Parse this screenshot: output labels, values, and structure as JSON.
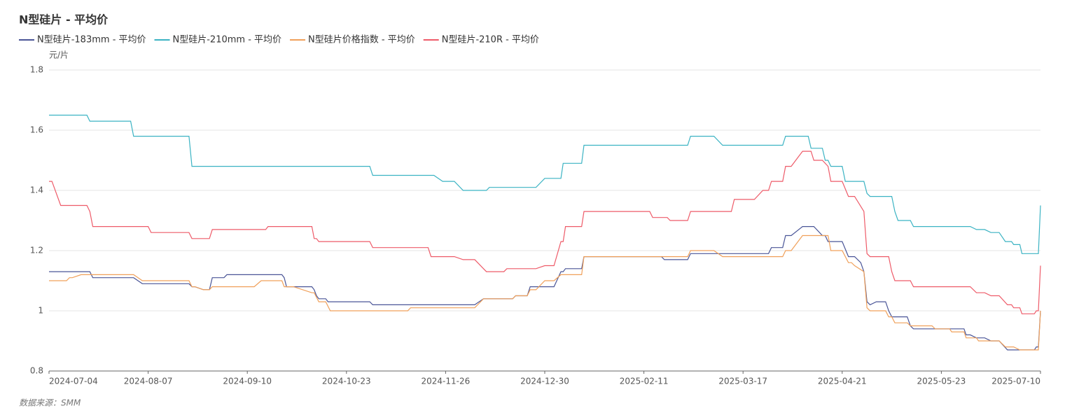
{
  "chart_data": {
    "type": "line",
    "title": "N型硅片 - 平均价",
    "y_label": "元/片",
    "source": "数据来源：SMM",
    "xlim": [
      "2024-07-04",
      "2025-07-10"
    ],
    "xticks": [
      "2024-07-04",
      "2024-08-07",
      "2024-09-10",
      "2024-10-23",
      "2024-11-26",
      "2024-12-30",
      "2025-02-11",
      "2025-03-17",
      "2025-04-21",
      "2025-05-23",
      "2025-07-10"
    ],
    "ylim": [
      0.8,
      1.8
    ],
    "yticks": [
      0.8,
      1,
      1.2,
      1.4,
      1.6,
      1.8
    ],
    "grid": true,
    "series": [
      {
        "name": "N型硅片-183mm - 平均价",
        "color": "#4a5597",
        "x": [
          "2024-07-04",
          "2024-07-18",
          "2024-07-19",
          "2024-08-02",
          "2024-08-05",
          "2024-08-21",
          "2024-08-22",
          "2024-08-23",
          "2024-08-26",
          "2024-08-28",
          "2024-08-29",
          "2024-09-02",
          "2024-09-03",
          "2024-09-25",
          "2024-09-26",
          "2024-09-27",
          "2024-10-08",
          "2024-10-09",
          "2024-10-10",
          "2024-10-11",
          "2024-10-14",
          "2024-10-15",
          "2024-10-31",
          "2024-11-01",
          "2024-12-06",
          "2024-12-09",
          "2024-12-19",
          "2024-12-20",
          "2024-12-24",
          "2024-12-25",
          "2025-01-03",
          "2025-01-06",
          "2025-01-07",
          "2025-01-08",
          "2025-01-15",
          "2025-01-16",
          "2025-02-17",
          "2025-02-18",
          "2025-02-26",
          "2025-02-27",
          "2025-03-26",
          "2025-03-27",
          "2025-03-31",
          "2025-04-01",
          "2025-04-03",
          "2025-04-07",
          "2025-04-11",
          "2025-04-14",
          "2025-04-15",
          "2025-04-16",
          "2025-04-21",
          "2025-04-23",
          "2025-04-25",
          "2025-04-27",
          "2025-04-28",
          "2025-04-29",
          "2025-04-30",
          "2025-05-02",
          "2025-05-05",
          "2025-05-06",
          "2025-05-07",
          "2025-05-12",
          "2025-05-13",
          "2025-05-14",
          "2025-06-03",
          "2025-06-04",
          "2025-06-06",
          "2025-06-09",
          "2025-06-13",
          "2025-06-16",
          "2025-06-20",
          "2025-06-24",
          "2025-07-07",
          "2025-07-08",
          "2025-07-09",
          "2025-07-10"
        ],
        "values": [
          1.13,
          1.13,
          1.11,
          1.11,
          1.09,
          1.09,
          1.08,
          1.08,
          1.07,
          1.07,
          1.11,
          1.11,
          1.12,
          1.12,
          1.11,
          1.08,
          1.08,
          1.07,
          1.05,
          1.04,
          1.04,
          1.03,
          1.03,
          1.02,
          1.02,
          1.04,
          1.04,
          1.05,
          1.05,
          1.08,
          1.08,
          1.13,
          1.13,
          1.14,
          1.14,
          1.18,
          1.18,
          1.17,
          1.17,
          1.19,
          1.19,
          1.21,
          1.21,
          1.25,
          1.25,
          1.28,
          1.28,
          1.25,
          1.25,
          1.23,
          1.23,
          1.18,
          1.18,
          1.16,
          1.13,
          1.03,
          1.02,
          1.03,
          1.03,
          1.0,
          0.98,
          0.98,
          0.95,
          0.94,
          0.94,
          0.92,
          0.92,
          0.91,
          0.91,
          0.9,
          0.9,
          0.87,
          0.87,
          0.88,
          0.88,
          1.0
        ]
      },
      {
        "name": "N型硅片-210mm - 平均价",
        "color": "#3bb3c3",
        "x": [
          "2024-07-04",
          "2024-07-17",
          "2024-07-18",
          "2024-08-01",
          "2024-08-02",
          "2024-08-21",
          "2024-08-22",
          "2024-10-31",
          "2024-11-01",
          "2024-11-22",
          "2024-11-25",
          "2024-11-29",
          "2024-12-02",
          "2024-12-10",
          "2024-12-11",
          "2024-12-27",
          "2024-12-30",
          "2025-01-06",
          "2025-01-07",
          "2025-01-15",
          "2025-01-16",
          "2025-02-26",
          "2025-02-27",
          "2025-03-07",
          "2025-03-10",
          "2025-03-31",
          "2025-04-01",
          "2025-04-09",
          "2025-04-10",
          "2025-04-14",
          "2025-04-15",
          "2025-04-16",
          "2025-04-17",
          "2025-04-21",
          "2025-04-22",
          "2025-04-28",
          "2025-04-29",
          "2025-04-30",
          "2025-05-07",
          "2025-05-08",
          "2025-05-09",
          "2025-05-13",
          "2025-05-14",
          "2025-06-06",
          "2025-06-09",
          "2025-06-13",
          "2025-06-16",
          "2025-06-20",
          "2025-06-23",
          "2025-06-26",
          "2025-06-27",
          "2025-06-30",
          "2025-07-01",
          "2025-07-09",
          "2025-07-10"
        ],
        "values": [
          1.65,
          1.65,
          1.63,
          1.63,
          1.58,
          1.58,
          1.48,
          1.48,
          1.45,
          1.45,
          1.43,
          1.43,
          1.4,
          1.4,
          1.41,
          1.41,
          1.44,
          1.44,
          1.49,
          1.49,
          1.55,
          1.55,
          1.58,
          1.58,
          1.55,
          1.55,
          1.58,
          1.58,
          1.54,
          1.54,
          1.5,
          1.5,
          1.48,
          1.48,
          1.43,
          1.43,
          1.39,
          1.38,
          1.38,
          1.33,
          1.3,
          1.3,
          1.28,
          1.28,
          1.27,
          1.27,
          1.26,
          1.26,
          1.23,
          1.23,
          1.22,
          1.22,
          1.19,
          1.19,
          1.35
        ]
      },
      {
        "name": "N型硅片价格指数 - 平均价",
        "color": "#f0a05a",
        "x": [
          "2024-07-04",
          "2024-07-10",
          "2024-07-11",
          "2024-07-12",
          "2024-07-15",
          "2024-08-02",
          "2024-08-05",
          "2024-08-21",
          "2024-08-22",
          "2024-08-23",
          "2024-08-26",
          "2024-08-28",
          "2024-08-29",
          "2024-09-13",
          "2024-09-16",
          "2024-09-25",
          "2024-09-26",
          "2024-09-30",
          "2024-10-08",
          "2024-10-09",
          "2024-10-11",
          "2024-10-14",
          "2024-10-16",
          "2024-11-13",
          "2024-11-14",
          "2024-12-06",
          "2024-12-09",
          "2024-12-19",
          "2024-12-20",
          "2024-12-24",
          "2024-12-25",
          "2024-12-27",
          "2024-12-30",
          "2025-01-03",
          "2025-01-06",
          "2025-01-15",
          "2025-01-16",
          "2025-02-26",
          "2025-02-27",
          "2025-03-07",
          "2025-03-10",
          "2025-03-31",
          "2025-04-01",
          "2025-04-03",
          "2025-04-07",
          "2025-04-16",
          "2025-04-17",
          "2025-04-21",
          "2025-04-23",
          "2025-04-24",
          "2025-04-25",
          "2025-04-28",
          "2025-04-29",
          "2025-04-30",
          "2025-05-05",
          "2025-05-06",
          "2025-05-07",
          "2025-05-08",
          "2025-05-12",
          "2025-05-13",
          "2025-05-20",
          "2025-05-21",
          "2025-05-27",
          "2025-05-28",
          "2025-06-03",
          "2025-06-04",
          "2025-06-09",
          "2025-06-10",
          "2025-06-20",
          "2025-06-23",
          "2025-06-27",
          "2025-06-30",
          "2025-07-09",
          "2025-07-10"
        ],
        "values": [
          1.1,
          1.1,
          1.11,
          1.11,
          1.12,
          1.12,
          1.1,
          1.1,
          1.08,
          1.08,
          1.07,
          1.07,
          1.08,
          1.08,
          1.1,
          1.1,
          1.08,
          1.08,
          1.06,
          1.06,
          1.03,
          1.03,
          1.0,
          1.0,
          1.01,
          1.01,
          1.04,
          1.04,
          1.05,
          1.05,
          1.07,
          1.07,
          1.1,
          1.1,
          1.12,
          1.12,
          1.18,
          1.18,
          1.2,
          1.2,
          1.18,
          1.18,
          1.2,
          1.2,
          1.25,
          1.25,
          1.2,
          1.2,
          1.16,
          1.16,
          1.15,
          1.13,
          1.01,
          1.0,
          1.0,
          0.98,
          0.98,
          0.96,
          0.96,
          0.95,
          0.95,
          0.94,
          0.94,
          0.93,
          0.93,
          0.91,
          0.91,
          0.9,
          0.9,
          0.88,
          0.88,
          0.87,
          0.87,
          1.0
        ]
      },
      {
        "name": "N型硅片-210R - 平均价",
        "color": "#ee5b69",
        "x": [
          "2024-07-04",
          "2024-07-05",
          "2024-07-08",
          "2024-07-17",
          "2024-07-18",
          "2024-07-19",
          "2024-08-07",
          "2024-08-08",
          "2024-08-21",
          "2024-08-22",
          "2024-08-28",
          "2024-08-29",
          "2024-09-18",
          "2024-09-19",
          "2024-10-08",
          "2024-10-09",
          "2024-10-10",
          "2024-10-11",
          "2024-10-31",
          "2024-11-01",
          "2024-11-20",
          "2024-11-21",
          "2024-11-29",
          "2024-12-02",
          "2024-12-06",
          "2024-12-09",
          "2024-12-10",
          "2024-12-16",
          "2024-12-17",
          "2024-12-27",
          "2024-12-30",
          "2025-01-03",
          "2025-01-06",
          "2025-01-07",
          "2025-01-08",
          "2025-01-15",
          "2025-01-16",
          "2025-02-13",
          "2025-02-14",
          "2025-02-19",
          "2025-02-20",
          "2025-02-26",
          "2025-02-27",
          "2025-03-13",
          "2025-03-14",
          "2025-03-21",
          "2025-03-24",
          "2025-03-26",
          "2025-03-27",
          "2025-03-31",
          "2025-04-01",
          "2025-04-03",
          "2025-04-07",
          "2025-04-10",
          "2025-04-11",
          "2025-04-14",
          "2025-04-16",
          "2025-04-17",
          "2025-04-21",
          "2025-04-23",
          "2025-04-25",
          "2025-04-28",
          "2025-04-29",
          "2025-04-30",
          "2025-05-06",
          "2025-05-07",
          "2025-05-08",
          "2025-05-13",
          "2025-05-14",
          "2025-06-06",
          "2025-06-09",
          "2025-06-13",
          "2025-06-16",
          "2025-06-20",
          "2025-06-24",
          "2025-06-26",
          "2025-06-27",
          "2025-06-30",
          "2025-07-01",
          "2025-07-07",
          "2025-07-08",
          "2025-07-09",
          "2025-07-10"
        ],
        "values": [
          1.43,
          1.43,
          1.35,
          1.35,
          1.33,
          1.28,
          1.28,
          1.26,
          1.26,
          1.24,
          1.24,
          1.27,
          1.27,
          1.28,
          1.28,
          1.24,
          1.24,
          1.23,
          1.23,
          1.21,
          1.21,
          1.18,
          1.18,
          1.17,
          1.17,
          1.14,
          1.13,
          1.13,
          1.14,
          1.14,
          1.15,
          1.15,
          1.23,
          1.23,
          1.28,
          1.28,
          1.33,
          1.33,
          1.31,
          1.31,
          1.3,
          1.3,
          1.33,
          1.33,
          1.37,
          1.37,
          1.4,
          1.4,
          1.43,
          1.43,
          1.48,
          1.48,
          1.53,
          1.53,
          1.5,
          1.5,
          1.48,
          1.43,
          1.43,
          1.38,
          1.38,
          1.33,
          1.19,
          1.18,
          1.18,
          1.13,
          1.1,
          1.1,
          1.08,
          1.08,
          1.06,
          1.06,
          1.05,
          1.05,
          1.02,
          1.02,
          1.01,
          1.01,
          0.99,
          0.99,
          1.0,
          1.0,
          1.15
        ]
      }
    ]
  }
}
